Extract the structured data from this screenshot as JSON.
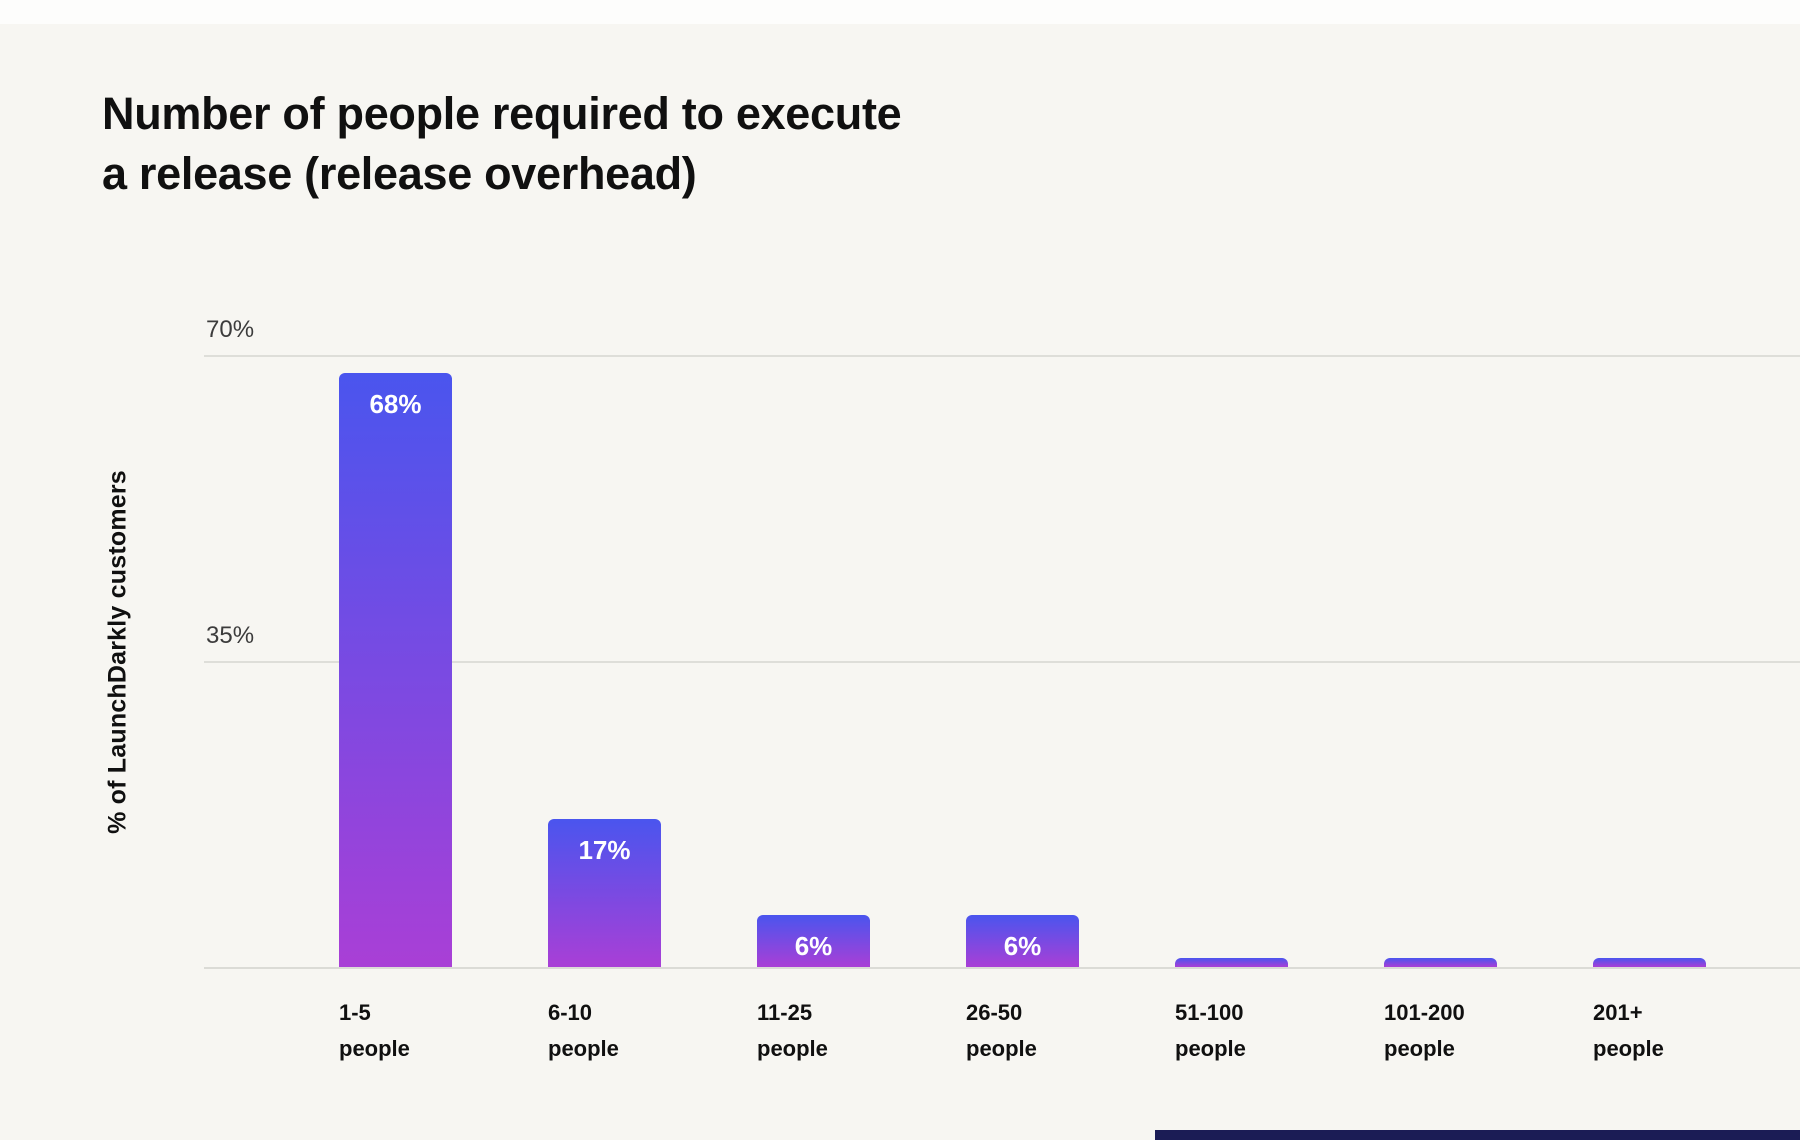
{
  "title_lines": [
    "Number of people required to execute",
    "a release (release overhead)"
  ],
  "chart_data": {
    "type": "bar",
    "title": "Number of people required to execute a release (release overhead)",
    "ylabel": "% of LaunchDarkly customers",
    "xlabel": "",
    "categories": [
      "1-5 people",
      "6-10 people",
      "11-25 people",
      "26-50 people",
      "51-100 people",
      "101-200 people",
      "201+ people"
    ],
    "category_lines": [
      [
        "1-5",
        "people"
      ],
      [
        "6-10",
        "people"
      ],
      [
        "11-25",
        "people"
      ],
      [
        "26-50",
        "people"
      ],
      [
        "51-100",
        "people"
      ],
      [
        "101-200",
        "people"
      ],
      [
        "201+",
        "people"
      ]
    ],
    "values": [
      68,
      17,
      6,
      6,
      1,
      1,
      1
    ],
    "value_labels": [
      "68%",
      "17%",
      "6%",
      "6%",
      "",
      "",
      ""
    ],
    "ylim": [
      0,
      70
    ],
    "yticks": [
      70,
      35
    ],
    "ytick_labels": [
      "70%",
      "35%"
    ],
    "grid": true,
    "legend": false,
    "colors": {
      "background": "#f7f6f2",
      "bar_gradient_top": "#4a55ee",
      "bar_gradient_bottom": "#a93fd6",
      "gridline": "#dedeD9",
      "axis_text": "#3c3c3c",
      "label_text": "#101010",
      "value_label_text": "#ffffff",
      "footer_strip": "#1b1c55"
    }
  }
}
